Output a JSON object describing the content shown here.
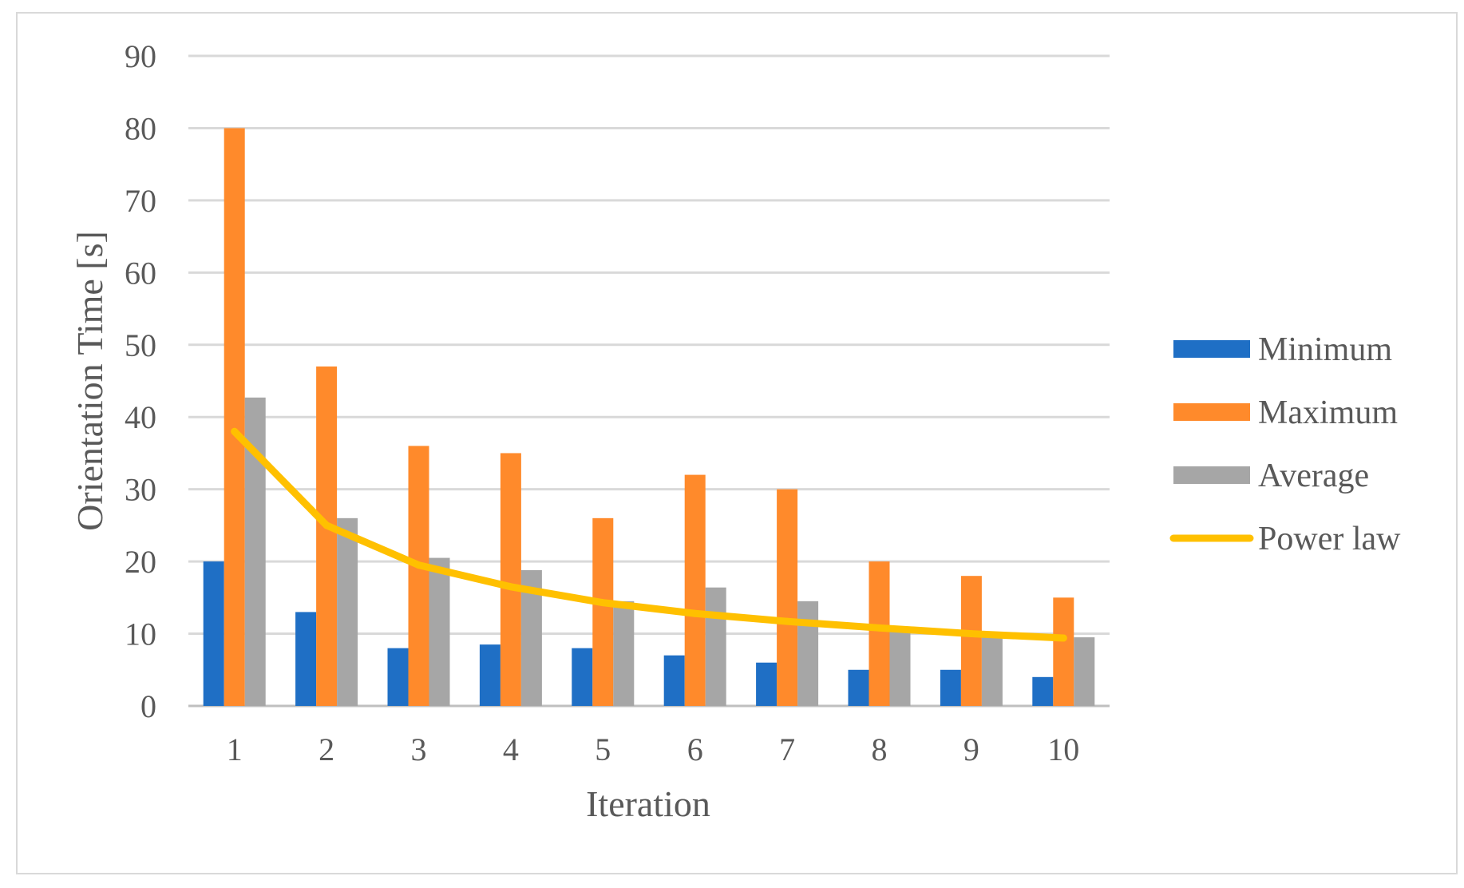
{
  "chart_data": {
    "type": "bar",
    "categories": [
      "1",
      "2",
      "3",
      "4",
      "5",
      "6",
      "7",
      "8",
      "9",
      "10"
    ],
    "series": [
      {
        "name": "Minimum",
        "kind": "bar",
        "color": "#1f6fc5",
        "values": [
          20,
          13,
          8,
          8.5,
          8,
          7,
          6,
          5,
          5,
          4
        ]
      },
      {
        "name": "Maximum",
        "kind": "bar",
        "color": "#ff8a2b",
        "values": [
          80,
          47,
          36,
          35,
          26,
          32,
          30,
          20,
          18,
          15
        ]
      },
      {
        "name": "Average",
        "kind": "bar",
        "color": "#a6a6a6",
        "values": [
          42.7,
          26,
          20.5,
          18.8,
          14.5,
          16.4,
          14.5,
          10.5,
          9.5,
          9.5
        ]
      },
      {
        "name": "Power law",
        "kind": "line",
        "color": "#ffc000",
        "values": [
          38,
          25,
          19.5,
          16.5,
          14.3,
          12.8,
          11.7,
          10.8,
          10,
          9.4
        ]
      }
    ],
    "title": "",
    "xlabel": "Iteration",
    "ylabel": "Orientation Time [s]",
    "ylim": [
      0,
      90
    ],
    "yticks": [
      0,
      10,
      20,
      30,
      40,
      50,
      60,
      70,
      80,
      90
    ],
    "grid": true,
    "legend_position": "right"
  }
}
